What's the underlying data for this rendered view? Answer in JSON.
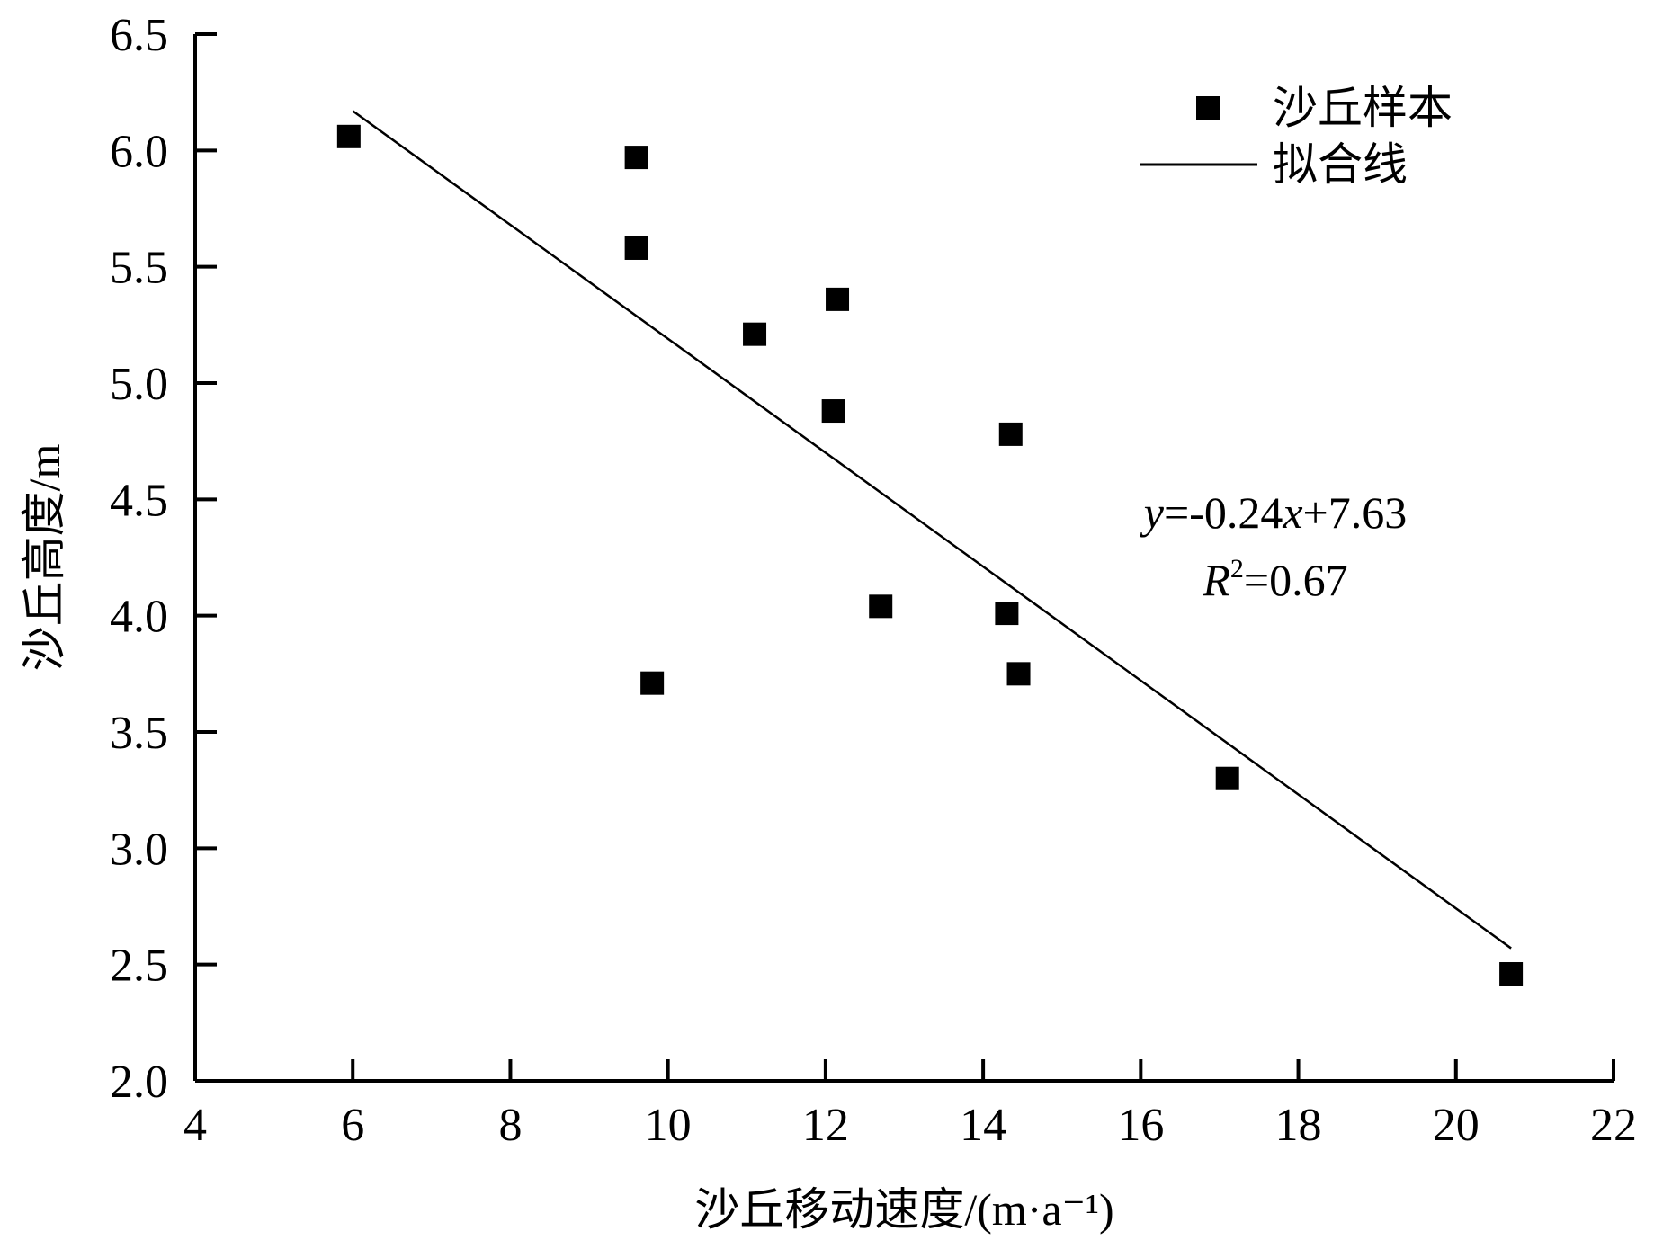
{
  "chart_data": {
    "type": "scatter",
    "xlabel": "沙丘移动速度/(m·a⁻¹)",
    "ylabel": "沙丘高度/m",
    "xlim": [
      4,
      22
    ],
    "ylim": [
      2.0,
      6.5
    ],
    "xticks": [
      "4",
      "6",
      "8",
      "10",
      "12",
      "14",
      "16",
      "18",
      "20",
      "22"
    ],
    "yticks": [
      "2.0",
      "2.5",
      "3.0",
      "3.5",
      "4.0",
      "4.5",
      "5.0",
      "5.5",
      "6.0",
      "6.5"
    ],
    "grid": false,
    "legend_position": "top-right",
    "series": [
      {
        "name": "沙丘样本",
        "kind": "scatter",
        "marker": "square",
        "color": "#000000",
        "points": [
          {
            "x": 5.95,
            "y": 6.06
          },
          {
            "x": 9.6,
            "y": 5.97
          },
          {
            "x": 9.6,
            "y": 5.58
          },
          {
            "x": 11.1,
            "y": 5.21
          },
          {
            "x": 12.15,
            "y": 5.36
          },
          {
            "x": 12.1,
            "y": 4.88
          },
          {
            "x": 14.35,
            "y": 4.78
          },
          {
            "x": 12.7,
            "y": 4.04
          },
          {
            "x": 14.3,
            "y": 4.01
          },
          {
            "x": 14.45,
            "y": 3.75
          },
          {
            "x": 9.8,
            "y": 3.71
          },
          {
            "x": 17.1,
            "y": 3.3
          },
          {
            "x": 20.7,
            "y": 2.46
          }
        ]
      },
      {
        "name": "拟合线",
        "kind": "line",
        "color": "#000000",
        "points": [
          {
            "x": 6.0,
            "y": 6.17
          },
          {
            "x": 20.7,
            "y": 2.57
          }
        ]
      }
    ],
    "annotations": {
      "equation_y": "y",
      "equation_rest": "=-0.24",
      "equation_x": "x",
      "equation_tail": "+7.63",
      "r2_R": "R",
      "r2_sup": "2",
      "r2_value": "=0.67"
    }
  }
}
